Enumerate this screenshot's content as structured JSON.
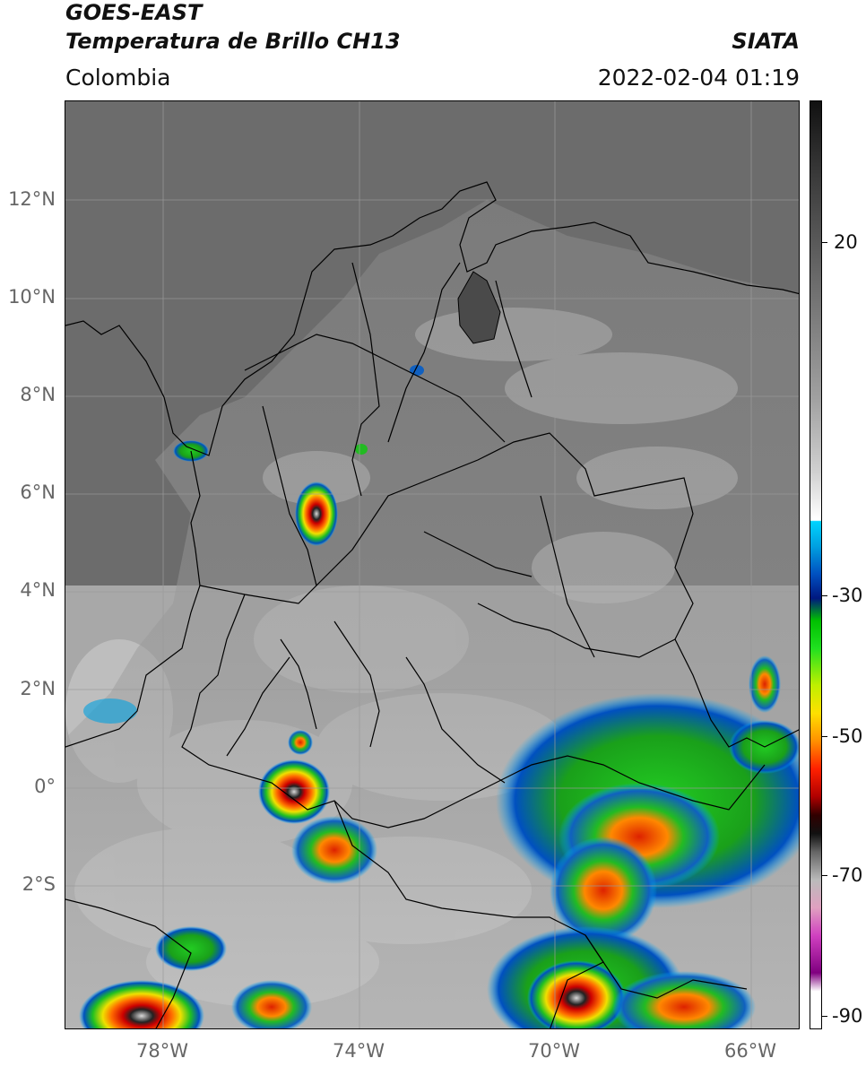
{
  "header": {
    "satellite": "GOES-EAST",
    "product": "Temperatura de Brillo CH13",
    "region": "Colombia",
    "source": "SIATA",
    "datetime": "2022-02-04 01:19"
  },
  "map": {
    "extent": {
      "lon": [
        -80,
        -65
      ],
      "lat": [
        -5,
        14
      ]
    },
    "lat_labels": [
      "12°N",
      "10°N",
      "8°N",
      "6°N",
      "4°N",
      "2°N",
      "0°",
      "2°S"
    ],
    "lat_values": [
      12,
      10,
      8,
      6,
      4,
      2,
      0,
      -2
    ],
    "lon_labels": [
      "78°W",
      "74°W",
      "70°W",
      "66°W"
    ],
    "lon_values": [
      -78,
      -74,
      -70,
      -66
    ],
    "gridlines": true,
    "colors": {
      "land_background": "#7e7e7e",
      "sea_background": "#6a6a6a",
      "borders": "#000000"
    }
  },
  "colorbar": {
    "ticks": [
      "20",
      "-30",
      "-50",
      "-70",
      "-90"
    ],
    "tick_values": [
      20,
      -30,
      -50,
      -70,
      -90
    ],
    "range": [
      -92,
      32
    ]
  }
}
